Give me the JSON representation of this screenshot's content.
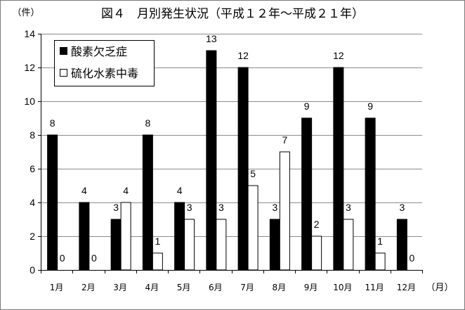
{
  "chart_data": {
    "type": "bar",
    "title": "図４　月別発生状況（平成１２年～平成２１年）",
    "ylabel": "（件）",
    "xlabel": "（月）",
    "categories": [
      "1月",
      "2月",
      "3月",
      "4月",
      "5月",
      "6月",
      "7月",
      "8月",
      "9月",
      "10月",
      "11月",
      "12月"
    ],
    "series": [
      {
        "name": "酸素欠乏症",
        "color": "#000000",
        "values": [
          8,
          4,
          3,
          8,
          4,
          13,
          12,
          3,
          9,
          12,
          9,
          3
        ]
      },
      {
        "name": "硫化水素中毒",
        "color": "#ffffff",
        "values": [
          0,
          0,
          4,
          1,
          3,
          3,
          5,
          7,
          2,
          3,
          1,
          0
        ]
      }
    ],
    "ylim": [
      0,
      14
    ],
    "yticks": [
      0,
      2,
      4,
      6,
      8,
      10,
      12,
      14
    ],
    "grid": true,
    "legend_position": "top-left"
  }
}
